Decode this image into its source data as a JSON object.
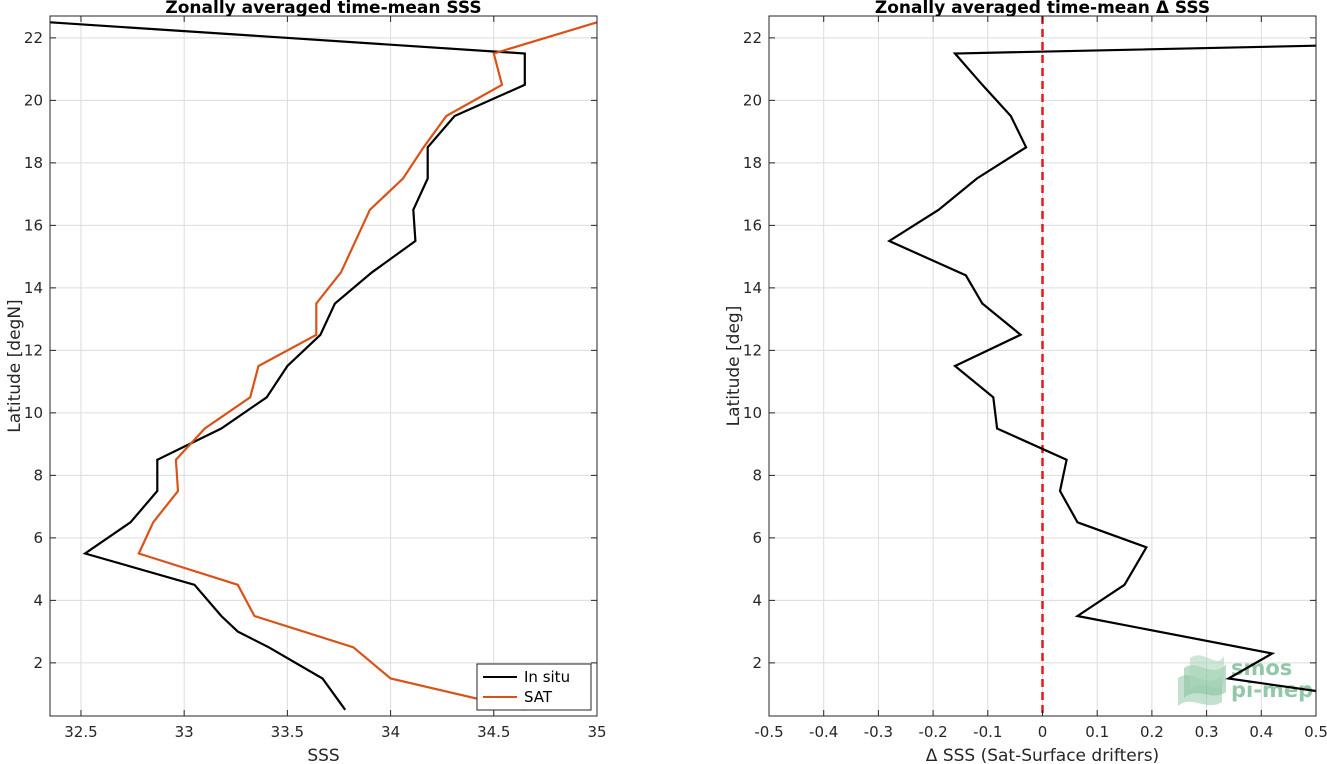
{
  "chart_data": [
    {
      "type": "line",
      "title": "Zonally averaged time-mean SSS",
      "xlabel": "SSS",
      "ylabel": "Latitude [degN]",
      "xlim": [
        32.35,
        35.0
      ],
      "ylim": [
        0.3,
        22.7
      ],
      "xticks": [
        32.5,
        33,
        33.5,
        34,
        34.5,
        35
      ],
      "xtick_labels": [
        "32.5",
        "33",
        "33.5",
        "34",
        "34.5",
        "35"
      ],
      "yticks": [
        2,
        4,
        6,
        8,
        10,
        12,
        14,
        16,
        18,
        20,
        22
      ],
      "ytick_labels": [
        "2",
        "4",
        "6",
        "8",
        "10",
        "12",
        "14",
        "16",
        "18",
        "20",
        "22"
      ],
      "grid": true,
      "legend_position": "bottom-right",
      "series": [
        {
          "name": "In situ",
          "color": "#000000",
          "points": [
            [
              33.78,
              0.5
            ],
            [
              33.67,
              1.5
            ],
            [
              33.41,
              2.5
            ],
            [
              33.26,
              3.0
            ],
            [
              33.18,
              3.5
            ],
            [
              33.05,
              4.5
            ],
            [
              32.52,
              5.5
            ],
            [
              32.74,
              6.5
            ],
            [
              32.87,
              7.5
            ],
            [
              32.87,
              8.5
            ],
            [
              33.18,
              9.5
            ],
            [
              33.4,
              10.5
            ],
            [
              33.5,
              11.5
            ],
            [
              33.66,
              12.5
            ],
            [
              33.73,
              13.5
            ],
            [
              33.91,
              14.5
            ],
            [
              34.12,
              15.5
            ],
            [
              34.11,
              16.5
            ],
            [
              34.18,
              17.5
            ],
            [
              34.18,
              18.5
            ],
            [
              34.31,
              19.5
            ],
            [
              34.65,
              20.5
            ],
            [
              34.65,
              21.5
            ],
            [
              32.35,
              22.5
            ]
          ]
        },
        {
          "name": "SAT",
          "color": "#d95319",
          "points": [
            [
              34.65,
              0.5
            ],
            [
              34.0,
              1.5
            ],
            [
              33.82,
              2.5
            ],
            [
              33.34,
              3.5
            ],
            [
              33.26,
              4.5
            ],
            [
              32.78,
              5.5
            ],
            [
              32.85,
              6.5
            ],
            [
              32.97,
              7.5
            ],
            [
              32.96,
              8.5
            ],
            [
              33.1,
              9.5
            ],
            [
              33.32,
              10.5
            ],
            [
              33.36,
              11.5
            ],
            [
              33.64,
              12.5
            ],
            [
              33.64,
              13.5
            ],
            [
              33.76,
              14.5
            ],
            [
              33.9,
              16.5
            ],
            [
              34.06,
              17.5
            ],
            [
              34.16,
              18.5
            ],
            [
              34.27,
              19.5
            ],
            [
              34.54,
              20.5
            ],
            [
              34.5,
              21.5
            ],
            [
              35.0,
              22.5
            ]
          ]
        }
      ]
    },
    {
      "type": "line",
      "title": "Zonally averaged time-mean Δ SSS",
      "xlabel": "Δ SSS (Sat-Surface drifters)",
      "ylabel": "Latitude [deg]",
      "xlim": [
        -0.5,
        0.5
      ],
      "ylim": [
        0.3,
        22.7
      ],
      "xticks": [
        -0.5,
        -0.4,
        -0.3,
        -0.2,
        -0.1,
        0,
        0.1,
        0.2,
        0.3,
        0.4,
        0.5
      ],
      "xtick_labels": [
        "-0.5",
        "-0.4",
        "-0.3",
        "-0.2",
        "-0.1",
        "0",
        "0.1",
        "0.2",
        "0.3",
        "0.4",
        "0.5"
      ],
      "yticks": [
        2,
        4,
        6,
        8,
        10,
        12,
        14,
        16,
        18,
        20,
        22
      ],
      "ytick_labels": [
        "2",
        "4",
        "6",
        "8",
        "10",
        "12",
        "14",
        "16",
        "18",
        "20",
        "22"
      ],
      "grid": true,
      "reference_line": {
        "x": 0,
        "color": "#e41a1c",
        "style": "dashed"
      },
      "series": [
        {
          "color": "#000000",
          "points": [
            [
              0.5,
              1.1
            ],
            [
              0.34,
              1.5
            ],
            [
              0.42,
              2.3
            ],
            [
              0.064,
              3.5
            ],
            [
              0.15,
              4.5
            ],
            [
              0.19,
              5.7
            ],
            [
              0.064,
              6.5
            ],
            [
              0.032,
              7.5
            ],
            [
              0.044,
              8.5
            ],
            [
              -0.083,
              9.5
            ],
            [
              -0.09,
              10.5
            ],
            [
              -0.16,
              11.5
            ],
            [
              -0.04,
              12.5
            ],
            [
              -0.11,
              13.5
            ],
            [
              -0.14,
              14.4
            ],
            [
              -0.28,
              15.5
            ],
            [
              -0.19,
              16.5
            ],
            [
              -0.12,
              17.5
            ],
            [
              -0.03,
              18.5
            ],
            [
              -0.058,
              19.5
            ],
            [
              -0.11,
              20.5
            ],
            [
              -0.16,
              21.5
            ],
            [
              0.5,
              21.75
            ]
          ]
        }
      ]
    }
  ],
  "watermark": {
    "line1": "smos",
    "line2": "pi-mep",
    "color": "#7fbf99"
  }
}
